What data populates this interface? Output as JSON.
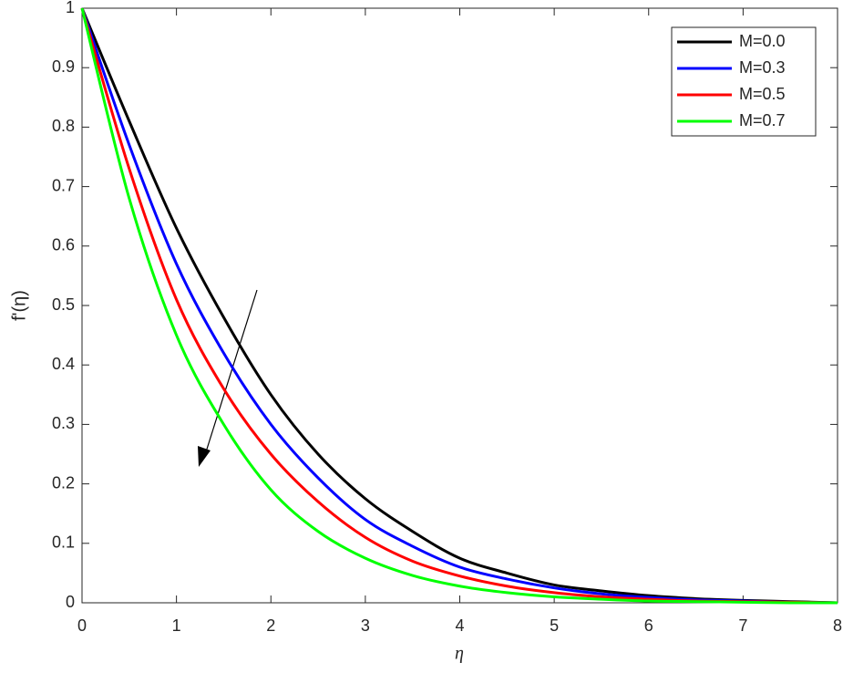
{
  "chart_data": {
    "type": "line",
    "x_label": "η",
    "y_label": "f'(η)",
    "x": [
      0,
      0.5,
      1,
      1.5,
      2,
      2.5,
      3,
      3.5,
      4,
      4.5,
      5,
      5.5,
      6,
      6.5,
      7,
      7.5,
      8
    ],
    "series": [
      {
        "name": "M=0.0",
        "color": "#000000",
        "values": [
          1,
          0.81,
          0.63,
          0.48,
          0.35,
          0.25,
          0.175,
          0.12,
          0.075,
          0.05,
          0.03,
          0.02,
          0.012,
          0.007,
          0.004,
          0.002,
          0
        ]
      },
      {
        "name": "M=0.3",
        "color": "#0000ff",
        "values": [
          1,
          0.77,
          0.57,
          0.42,
          0.3,
          0.21,
          0.14,
          0.095,
          0.06,
          0.04,
          0.025,
          0.015,
          0.009,
          0.005,
          0.003,
          0.001,
          0
        ]
      },
      {
        "name": "M=0.5",
        "color": "#ff0000",
        "values": [
          1,
          0.73,
          0.51,
          0.36,
          0.25,
          0.17,
          0.11,
          0.07,
          0.045,
          0.028,
          0.017,
          0.01,
          0.006,
          0.003,
          0.002,
          0.001,
          0
        ]
      },
      {
        "name": "M=0.7",
        "color": "#00ff00",
        "values": [
          1,
          0.68,
          0.45,
          0.3,
          0.19,
          0.12,
          0.075,
          0.046,
          0.028,
          0.017,
          0.01,
          0.006,
          0.003,
          0.002,
          0.001,
          0,
          0
        ]
      }
    ],
    "xlim": [
      0,
      8
    ],
    "xticks": [
      0,
      1,
      2,
      3,
      4,
      5,
      6,
      7,
      8
    ],
    "ylim": [
      0,
      1
    ],
    "yticks": [
      0,
      0.1,
      0.2,
      0.3,
      0.4,
      0.5,
      0.6,
      0.7,
      0.8,
      0.9,
      1
    ],
    "legend": "upper right",
    "grid": false
  }
}
